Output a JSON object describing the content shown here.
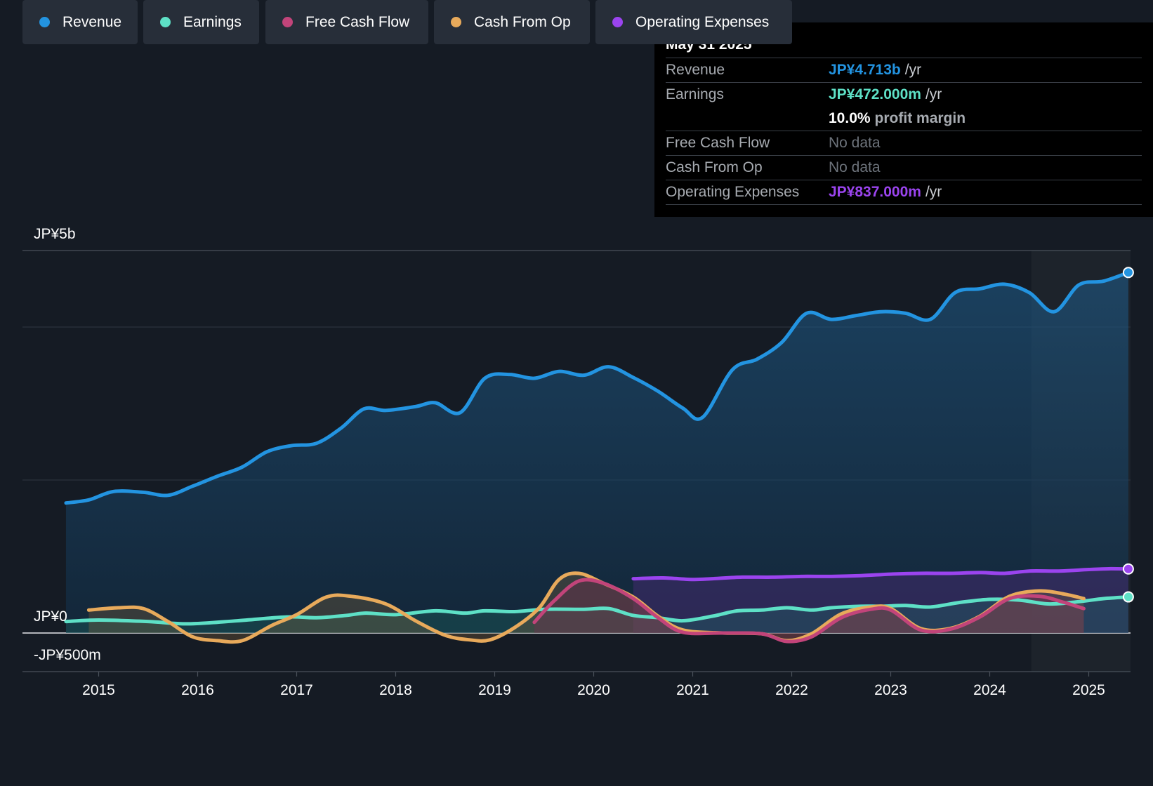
{
  "tooltip": {
    "date": "May 31 2025",
    "rows": {
      "revenue": {
        "label": "Revenue",
        "value": "JP¥4.713b",
        "unit": "/yr"
      },
      "earnings": {
        "label": "Earnings",
        "value": "JP¥472.000m",
        "unit": "/yr"
      },
      "margin": {
        "value": "10.0%",
        "label": "profit margin"
      },
      "fcf": {
        "label": "Free Cash Flow",
        "value": "No data"
      },
      "cfo": {
        "label": "Cash From Op",
        "value": "No data"
      },
      "opex": {
        "label": "Operating Expenses",
        "value": "JP¥837.000m",
        "unit": "/yr"
      }
    }
  },
  "legend": [
    "Revenue",
    "Earnings",
    "Free Cash Flow",
    "Cash From Op",
    "Operating Expenses"
  ],
  "colors": {
    "revenue": "#2394e1",
    "earnings": "#5ee0c6",
    "fcf": "#c2447a",
    "cfo": "#e8aa5b",
    "opex": "#9b44ef",
    "background": "#151b24"
  },
  "chart_data": {
    "type": "line",
    "y_unit": "JP¥",
    "ylim": [
      -500000000,
      5000000000
    ],
    "y_tick_labels": [
      "JP¥5b",
      "JP¥0",
      "-JP¥500m"
    ],
    "x_tick_labels": [
      "2015",
      "2016",
      "2017",
      "2018",
      "2019",
      "2020",
      "2021",
      "2022",
      "2023",
      "2024",
      "2025"
    ],
    "x_range": [
      2014.2,
      2025.4
    ],
    "forecast_region_start": 2024.42,
    "grid": true,
    "series": [
      {
        "name": "Revenue",
        "key": "revenue",
        "x": [
          2014.67,
          2014.9,
          2015.15,
          2015.45,
          2015.7,
          2015.95,
          2016.2,
          2016.45,
          2016.7,
          2016.95,
          2017.2,
          2017.45,
          2017.68,
          2017.9,
          2018.2,
          2018.4,
          2018.65,
          2018.9,
          2019.15,
          2019.4,
          2019.65,
          2019.9,
          2020.15,
          2020.4,
          2020.65,
          2020.9,
          2021.1,
          2021.4,
          2021.65,
          2021.9,
          2022.15,
          2022.4,
          2022.65,
          2022.9,
          2023.15,
          2023.4,
          2023.65,
          2023.9,
          2024.15,
          2024.4,
          2024.65,
          2024.9,
          2025.15,
          2025.4
        ],
        "y": [
          1700000000,
          1740000000,
          1850000000,
          1840000000,
          1800000000,
          1920000000,
          2050000000,
          2170000000,
          2370000000,
          2450000000,
          2480000000,
          2680000000,
          2930000000,
          2910000000,
          2960000000,
          3010000000,
          2880000000,
          3330000000,
          3380000000,
          3330000000,
          3420000000,
          3370000000,
          3480000000,
          3340000000,
          3160000000,
          2940000000,
          2820000000,
          3440000000,
          3580000000,
          3800000000,
          4180000000,
          4100000000,
          4150000000,
          4200000000,
          4180000000,
          4100000000,
          4450000000,
          4500000000,
          4560000000,
          4450000000,
          4200000000,
          4550000000,
          4600000000,
          4713000000
        ]
      },
      {
        "name": "Earnings",
        "key": "earnings",
        "x": [
          2014.67,
          2015.0,
          2015.5,
          2015.9,
          2016.4,
          2016.9,
          2017.2,
          2017.5,
          2017.7,
          2018.0,
          2018.4,
          2018.7,
          2018.9,
          2019.2,
          2019.5,
          2019.9,
          2020.15,
          2020.4,
          2020.65,
          2020.9,
          2021.2,
          2021.45,
          2021.7,
          2021.95,
          2022.2,
          2022.4,
          2022.7,
          2022.9,
          2023.15,
          2023.4,
          2023.7,
          2024.0,
          2024.3,
          2024.6,
          2024.9,
          2025.15,
          2025.4
        ],
        "y": [
          150000000,
          170000000,
          150000000,
          120000000,
          160000000,
          210000000,
          200000000,
          230000000,
          260000000,
          240000000,
          290000000,
          260000000,
          290000000,
          280000000,
          310000000,
          310000000,
          320000000,
          230000000,
          200000000,
          160000000,
          220000000,
          290000000,
          300000000,
          330000000,
          300000000,
          330000000,
          350000000,
          350000000,
          360000000,
          340000000,
          400000000,
          440000000,
          430000000,
          380000000,
          410000000,
          450000000,
          472000000
        ]
      },
      {
        "name": "Free Cash Flow",
        "key": "fcf",
        "x": [
          2019.4,
          2019.6,
          2019.85,
          2020.1,
          2020.4,
          2020.65,
          2020.9,
          2021.3,
          2021.7,
          2021.95,
          2022.2,
          2022.5,
          2022.8,
          2023.0,
          2023.3,
          2023.6,
          2023.9,
          2024.2,
          2024.5,
          2024.75,
          2024.95
        ],
        "y": [
          140000000,
          420000000,
          680000000,
          650000000,
          450000000,
          200000000,
          10000000,
          0,
          -10000000,
          -110000000,
          -50000000,
          200000000,
          310000000,
          300000000,
          40000000,
          50000000,
          210000000,
          450000000,
          480000000,
          400000000,
          320000000
        ]
      },
      {
        "name": "Cash From Op",
        "key": "cfo",
        "x": [
          2014.9,
          2015.2,
          2015.45,
          2015.7,
          2015.95,
          2016.2,
          2016.45,
          2016.75,
          2017.0,
          2017.3,
          2017.55,
          2017.9,
          2018.2,
          2018.5,
          2018.75,
          2018.95,
          2019.2,
          2019.45,
          2019.65,
          2019.85,
          2020.1,
          2020.4,
          2020.65,
          2020.9,
          2021.3,
          2021.7,
          2021.95,
          2022.2,
          2022.5,
          2022.8,
          2023.0,
          2023.3,
          2023.6,
          2023.9,
          2024.2,
          2024.5,
          2024.75,
          2024.95
        ],
        "y": [
          300000000,
          330000000,
          320000000,
          150000000,
          -50000000,
          -100000000,
          -100000000,
          100000000,
          240000000,
          470000000,
          480000000,
          380000000,
          160000000,
          -30000000,
          -90000000,
          -90000000,
          70000000,
          330000000,
          700000000,
          780000000,
          650000000,
          470000000,
          220000000,
          40000000,
          0,
          -10000000,
          -100000000,
          -10000000,
          250000000,
          340000000,
          320000000,
          60000000,
          60000000,
          220000000,
          480000000,
          550000000,
          510000000,
          450000000
        ]
      },
      {
        "name": "Operating Expenses",
        "key": "opex",
        "x": [
          2020.4,
          2020.7,
          2021.0,
          2021.2,
          2021.5,
          2021.8,
          2022.1,
          2022.4,
          2022.7,
          2023.0,
          2023.3,
          2023.6,
          2023.9,
          2024.15,
          2024.4,
          2024.7,
          2025.0,
          2025.2,
          2025.4
        ],
        "y": [
          710000000,
          720000000,
          700000000,
          710000000,
          730000000,
          730000000,
          740000000,
          740000000,
          750000000,
          770000000,
          780000000,
          780000000,
          790000000,
          780000000,
          810000000,
          810000000,
          830000000,
          840000000,
          837000000
        ]
      }
    ]
  }
}
